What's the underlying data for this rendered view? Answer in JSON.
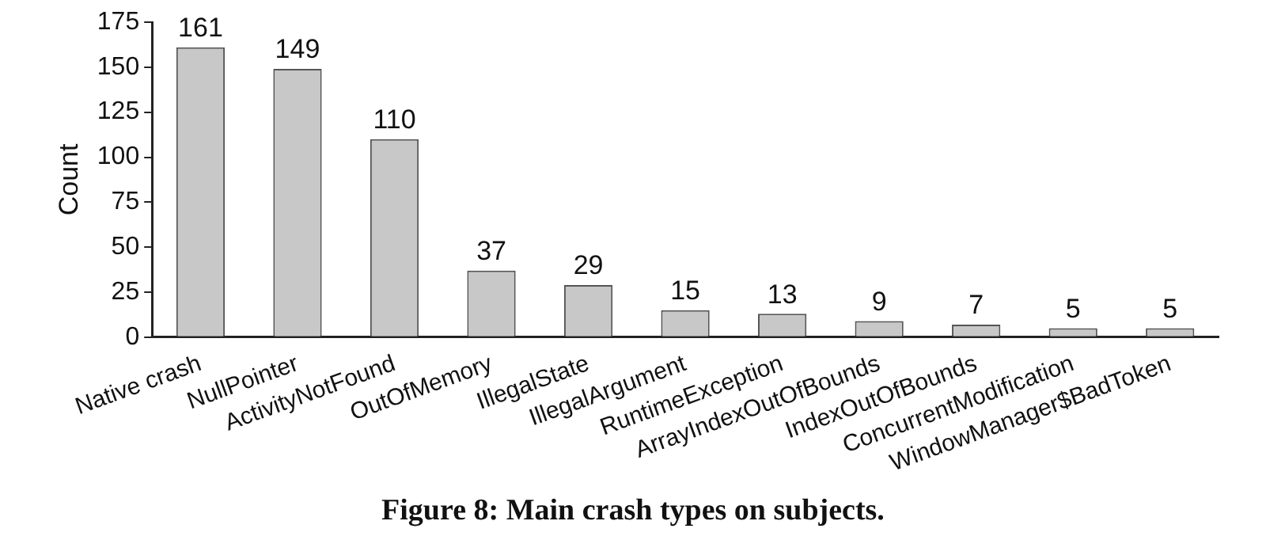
{
  "chart_data": {
    "type": "bar",
    "title": "Figure 8: Main crash types on subjects.",
    "ylabel": "Count",
    "categories": [
      "Native crash",
      "NullPointer",
      "ActivityNotFound",
      "OutOfMemory",
      "IllegalState",
      "IllegalArgument",
      "RuntimeException",
      "ArrayIndexOutOfBounds",
      "IndexOutOfBounds",
      "ConcurrentModification",
      "WindowManager$BadToken"
    ],
    "values": [
      161,
      149,
      110,
      37,
      29,
      15,
      13,
      9,
      7,
      5,
      5
    ],
    "color": "#c8c8c8",
    "ylim": [
      0,
      175
    ],
    "yticks": [
      0,
      25,
      50,
      75,
      100,
      125,
      150,
      175
    ],
    "grid": false,
    "data_labels": true,
    "legend": false
  }
}
